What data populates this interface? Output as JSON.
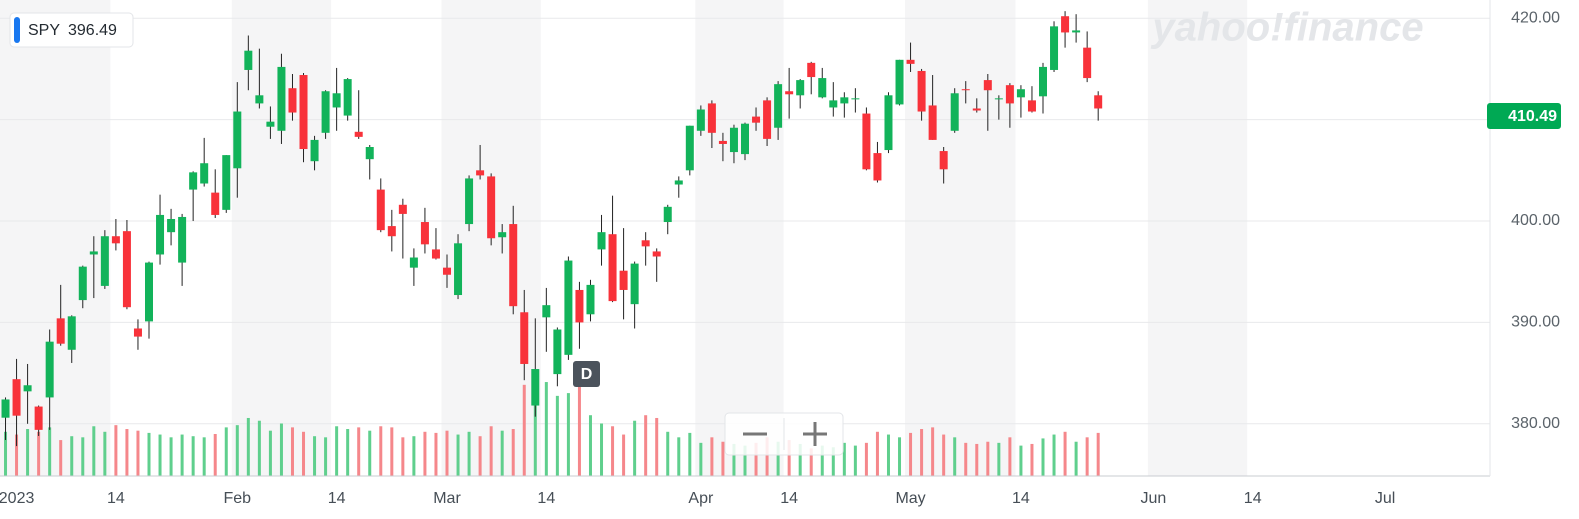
{
  "chart_data": {
    "type": "candlestick",
    "symbol": "SPY",
    "hover_price": 396.49,
    "last_price": 410.49,
    "watermark": "yahoo!finance",
    "event_label": "D",
    "categories": [
      null,
      "2023",
      null,
      null,
      null,
      null,
      null,
      null,
      null,
      null,
      "14",
      null,
      null,
      null,
      null,
      null,
      null,
      null,
      null,
      null,
      null,
      "Feb",
      null,
      null,
      null,
      null,
      null,
      null,
      null,
      null,
      "14",
      null,
      null,
      null,
      null,
      null,
      null,
      null,
      null,
      null,
      "Mar",
      null,
      null,
      null,
      null,
      null,
      null,
      null,
      null,
      "14",
      null,
      null,
      null,
      null,
      null,
      null,
      null,
      null,
      null,
      null,
      null,
      null,
      null,
      "Apr",
      null,
      null,
      null,
      null,
      null,
      null,
      null,
      "14",
      null,
      null,
      null,
      null,
      null,
      null,
      null,
      null,
      null,
      null,
      "May",
      null,
      null,
      null,
      null,
      null,
      null,
      null,
      null,
      null,
      "14",
      null,
      null,
      null,
      null,
      null,
      null,
      null,
      null,
      null,
      null,
      null,
      "Jun",
      null,
      null,
      null,
      null,
      null,
      null,
      null,
      null,
      "14",
      null,
      null,
      null,
      null,
      null,
      null,
      null,
      null,
      null,
      null,
      null,
      "Jul",
      null,
      null,
      null,
      null,
      null,
      null,
      null,
      null,
      null
    ],
    "open": [
      380.6,
      384.4,
      383.2,
      381.7,
      382.6,
      390.4,
      387.3,
      392.2,
      396.7,
      393.6,
      398.5,
      399.0,
      389.4,
      390.1,
      396.7,
      398.9,
      395.9,
      403.1,
      403.7,
      402.8,
      401.1,
      405.2,
      414.9,
      411.6,
      409.3,
      408.9,
      413.1,
      414.4,
      405.9,
      408.7,
      411.2,
      410.4,
      408.8,
      406.1,
      403.1,
      399.5,
      401.6,
      395.4,
      399.9,
      397.2,
      395.4,
      392.7,
      399.7,
      405.0,
      404.4,
      398.4,
      399.7,
      391.0,
      381.8,
      390.5,
      384.9,
      386.8,
      393.2,
      390.8,
      397.2,
      398.7,
      395.1,
      391.8,
      398.1,
      397.0,
      399.9,
      403.6,
      405.0,
      408.9,
      411.6,
      407.9,
      406.8,
      406.6,
      410.3,
      411.9,
      409.2,
      412.8,
      412.4,
      415.6,
      412.2,
      411.2,
      411.6,
      412.0,
      410.6,
      406.7,
      407.0,
      411.5,
      415.9,
      414.8,
      411.4,
      406.9,
      408.9,
      413.0,
      411.1,
      413.9,
      412.0,
      413.4,
      412.2,
      411.9,
      412.3,
      414.9,
      420.2,
      418.6,
      417.1,
      412.4,
      null,
      null,
      null,
      null,
      null,
      null,
      null,
      null,
      null,
      null,
      null,
      null,
      null,
      null,
      null,
      null,
      null,
      null,
      null,
      null,
      null,
      null,
      null,
      null,
      null,
      null,
      null,
      null,
      null,
      null,
      null,
      null,
      null,
      null,
      null
    ],
    "high": [
      382.6,
      386.4,
      385.9,
      381.8,
      389.3,
      393.7,
      390.7,
      395.6,
      398.5,
      399.1,
      400.2,
      400.1,
      390.3,
      396.0,
      402.6,
      401.2,
      400.7,
      404.9,
      408.2,
      405.1,
      406.5,
      413.7,
      418.3,
      417.0,
      411.3,
      416.5,
      414.5,
      414.6,
      408.4,
      412.9,
      415.1,
      414.1,
      412.9,
      407.5,
      404.2,
      401.1,
      402.2,
      397.3,
      401.3,
      399.3,
      396.7,
      398.7,
      404.5,
      407.5,
      404.7,
      399.7,
      401.5,
      393.2,
      390.4,
      393.4,
      389.5,
      396.5,
      394.0,
      394.2,
      400.6,
      402.5,
      399.3,
      396.0,
      398.9,
      397.3,
      401.6,
      404.4,
      409.4,
      411.4,
      411.9,
      408.7,
      409.5,
      409.7,
      411.2,
      412.2,
      413.8,
      415.1,
      414.0,
      415.7,
      415.1,
      413.7,
      412.7,
      413.1,
      411.2,
      407.8,
      412.7,
      415.9,
      417.6,
      415.0,
      414.4,
      407.3,
      413.1,
      413.8,
      412.1,
      414.5,
      412.4,
      413.6,
      413.4,
      413.3,
      415.6,
      419.7,
      420.7,
      420.4,
      418.7,
      412.8,
      null,
      null,
      null,
      null,
      null,
      null,
      null,
      null,
      null,
      null,
      null,
      null,
      null,
      null,
      null,
      null,
      null,
      null,
      null,
      null,
      null,
      null,
      null,
      null,
      null,
      null,
      null,
      null,
      null,
      null,
      null,
      null,
      null,
      null,
      null
    ],
    "low": [
      378.4,
      377.8,
      380.0,
      378.8,
      379.4,
      387.7,
      386.0,
      391.4,
      392.4,
      393.3,
      397.1,
      391.3,
      387.3,
      388.4,
      395.7,
      397.6,
      393.6,
      400.0,
      403.4,
      400.3,
      400.8,
      402.3,
      412.9,
      411.1,
      408.1,
      407.6,
      409.9,
      405.8,
      405.0,
      408.1,
      408.9,
      409.9,
      408.1,
      404.1,
      398.9,
      397.0,
      396.3,
      393.6,
      396.8,
      396.2,
      393.4,
      392.3,
      399.0,
      404.1,
      397.6,
      396.8,
      390.8,
      384.3,
      380.7,
      387.1,
      383.7,
      386.3,
      387.4,
      390.1,
      395.6,
      392.0,
      390.3,
      389.4,
      395.6,
      394.0,
      398.7,
      402.3,
      404.5,
      408.4,
      407.2,
      405.9,
      405.7,
      406.0,
      408.9,
      407.4,
      408.0,
      410.1,
      411.1,
      412.5,
      412.1,
      410.3,
      410.2,
      410.7,
      405.0,
      403.8,
      406.7,
      411.4,
      414.7,
      409.9,
      408.0,
      403.7,
      408.7,
      411.6,
      410.7,
      408.9,
      410.0,
      409.2,
      410.2,
      410.7,
      410.6,
      414.7,
      417.1,
      417.6,
      413.7,
      409.9,
      null,
      null,
      null,
      null,
      null,
      null,
      null,
      null,
      null,
      null,
      null,
      null,
      null,
      null,
      null,
      null,
      null,
      null,
      null,
      null,
      null,
      null,
      null,
      null,
      null,
      null,
      null,
      null,
      null,
      null,
      null,
      null,
      null,
      null,
      null
    ],
    "close": [
      382.4,
      380.8,
      383.8,
      379.4,
      388.1,
      387.9,
      390.6,
      395.5,
      397.0,
      398.5,
      397.8,
      391.5,
      388.6,
      395.9,
      400.6,
      400.2,
      400.4,
      404.8,
      405.7,
      400.6,
      406.5,
      410.8,
      416.8,
      412.4,
      409.8,
      415.2,
      410.7,
      407.1,
      408.0,
      412.8,
      412.6,
      414.0,
      408.3,
      407.3,
      399.1,
      398.5,
      400.7,
      396.4,
      397.7,
      396.3,
      394.7,
      397.8,
      404.2,
      404.5,
      398.3,
      398.9,
      391.6,
      385.9,
      385.4,
      391.7,
      389.3,
      396.1,
      390.0,
      393.7,
      398.9,
      392.1,
      393.2,
      395.8,
      397.5,
      396.5,
      401.4,
      404.0,
      409.4,
      411.0,
      408.7,
      407.6,
      409.2,
      409.6,
      409.7,
      408.1,
      413.5,
      412.5,
      413.9,
      414.2,
      414.1,
      411.9,
      412.2,
      412.1,
      405.1,
      404.0,
      412.4,
      415.9,
      415.5,
      410.8,
      408.0,
      405.1,
      412.6,
      412.9,
      410.9,
      412.9,
      412.1,
      411.6,
      413.0,
      410.8,
      415.2,
      419.2,
      418.6,
      418.8,
      414.1,
      411.1,
      null,
      null,
      null,
      null,
      null,
      null,
      null,
      null,
      null,
      null,
      null,
      null,
      null,
      null,
      null,
      null,
      null,
      null,
      null,
      null,
      null,
      null,
      null,
      null,
      null,
      null,
      null,
      null,
      null,
      null,
      null,
      null,
      null,
      null,
      null
    ],
    "volume": [
      80,
      75,
      85,
      80,
      88,
      65,
      72,
      70,
      90,
      80,
      92,
      85,
      82,
      78,
      75,
      70,
      75,
      72,
      70,
      76,
      88,
      92,
      105,
      100,
      82,
      95,
      88,
      80,
      72,
      70,
      90,
      85,
      88,
      82,
      90,
      88,
      70,
      72,
      80,
      78,
      82,
      75,
      80,
      72,
      90,
      82,
      85,
      165,
      190,
      170,
      145,
      150,
      168,
      110,
      95,
      90,
      75,
      100,
      110,
      105,
      80,
      70,
      78,
      60,
      70,
      62,
      58,
      55,
      60,
      70,
      62,
      65,
      58,
      50,
      55,
      52,
      60,
      55,
      60,
      80,
      75,
      70,
      78,
      85,
      88,
      75,
      70,
      60,
      58,
      62,
      60,
      70,
      55,
      58,
      68,
      75,
      80,
      62,
      70,
      78,
      null,
      null,
      null,
      null,
      null,
      null,
      null,
      null,
      null,
      null,
      null,
      null,
      null,
      null,
      null,
      null,
      null,
      null,
      null,
      null,
      null,
      null,
      null,
      null,
      null,
      null,
      null,
      null,
      null,
      null,
      null,
      null,
      null,
      null,
      null
    ],
    "up_color": "#12b35a",
    "down_color": "#f8323a",
    "volume_up_color": "#5fcf8d",
    "volume_down_color": "#f5878b",
    "ylim": [
      374.85,
      421.8
    ],
    "yticks": [
      {
        "value": 380,
        "label": "380.00"
      },
      {
        "value": 390,
        "label": "390.00"
      },
      {
        "value": 400,
        "label": "400.00"
      },
      {
        "value": 410,
        "label": "410.00"
      },
      {
        "value": 420,
        "label": "420.00"
      }
    ],
    "grid": true
  }
}
